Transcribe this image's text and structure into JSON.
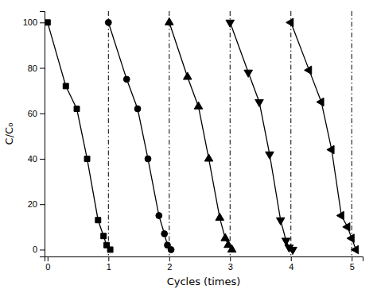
{
  "chart_data": {
    "type": "line",
    "xlabel": "Cycles (times)",
    "ylabel": "C/C₀",
    "xlim": [
      -0.05,
      5.18
    ],
    "ylim": [
      -3,
      105
    ],
    "xticks": [
      0,
      1,
      2,
      3,
      4,
      5
    ],
    "yticks": [
      0,
      20,
      40,
      60,
      80,
      100
    ],
    "vlines": {
      "x": [
        1,
        2,
        3,
        4,
        5
      ],
      "line_style": "dashdot",
      "color": "#000000"
    },
    "series": [
      {
        "color": "#000000",
        "marker": "square",
        "x": [
          0.0,
          0.3,
          0.48,
          0.65,
          0.83,
          0.92,
          0.97,
          1.03
        ],
        "values": [
          100,
          72,
          62,
          40,
          13,
          6,
          2,
          0
        ]
      },
      {
        "color": "#000000",
        "marker": "circle",
        "x": [
          1.0,
          1.3,
          1.48,
          1.65,
          1.83,
          1.92,
          1.97,
          2.03
        ],
        "values": [
          100,
          75,
          62,
          40,
          15,
          7,
          2,
          0
        ]
      },
      {
        "color": "#000000",
        "marker": "triangle-up",
        "x": [
          2.0,
          2.3,
          2.48,
          2.65,
          2.83,
          2.92,
          2.97,
          3.03
        ],
        "values": [
          100,
          76,
          63,
          40,
          14,
          5,
          2,
          0
        ]
      },
      {
        "color": "#000000",
        "marker": "triangle-down",
        "x": [
          3.0,
          3.3,
          3.48,
          3.65,
          3.83,
          3.92,
          3.97,
          4.03
        ],
        "values": [
          100,
          78,
          65,
          42,
          13,
          4,
          1,
          0
        ]
      },
      {
        "color": "#000000",
        "marker": "triangle-left",
        "x": [
          4.0,
          4.3,
          4.5,
          4.67,
          4.83,
          4.93,
          5.0,
          5.07
        ],
        "values": [
          100,
          79,
          65,
          44,
          15,
          10,
          5,
          0
        ]
      }
    ]
  }
}
